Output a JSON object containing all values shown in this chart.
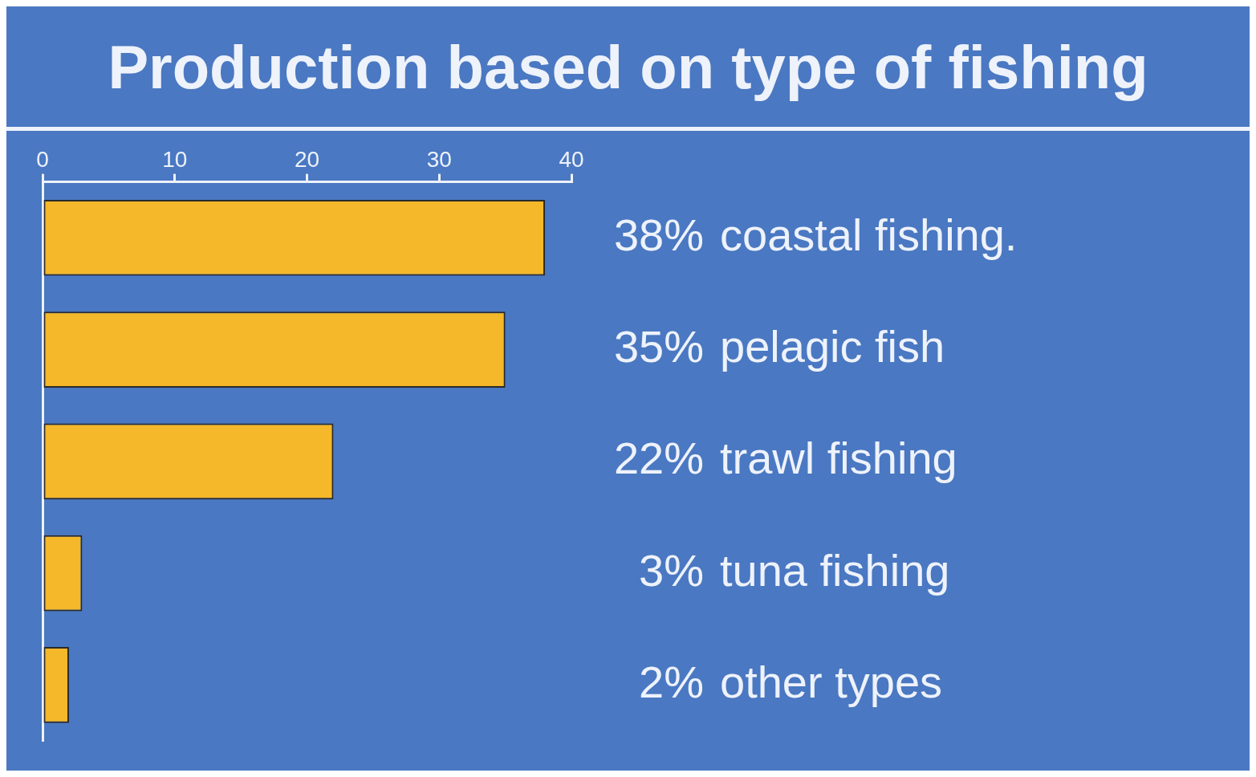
{
  "chart_data": {
    "type": "bar",
    "title": "Production based on type of fishing",
    "orientation": "horizontal",
    "categories": [
      "coastal fishing.",
      "pelagic fish",
      "trawl fishing",
      "tuna fishing",
      "other types"
    ],
    "values": [
      38,
      35,
      22,
      3,
      2
    ],
    "value_labels": [
      "38%",
      "35%",
      "22%",
      "3%",
      "2%"
    ],
    "color": "#f5b82a",
    "xlim": [
      0,
      40
    ],
    "xticks": [
      0,
      10,
      20,
      30,
      40
    ]
  }
}
